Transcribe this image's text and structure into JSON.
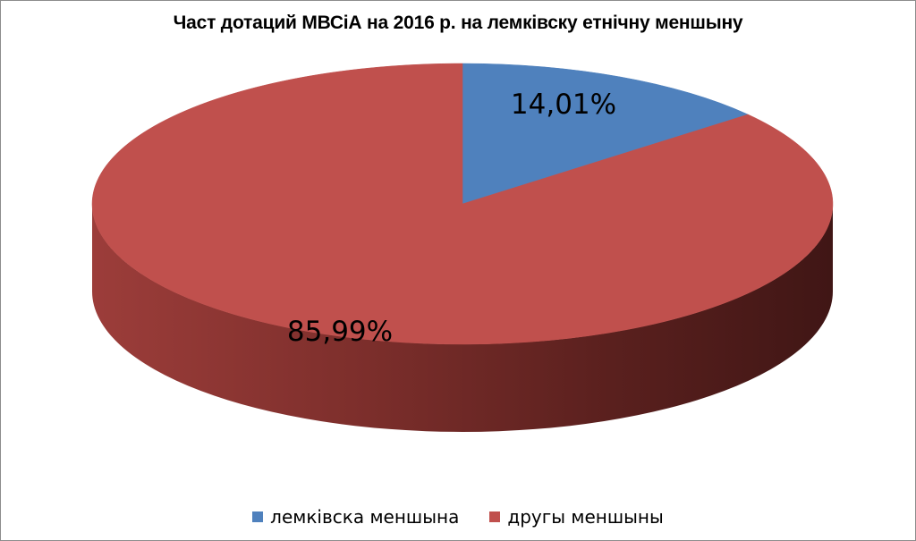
{
  "chart_data": {
    "type": "pie",
    "title": "Част дотаций МВСіА на 2016 р. на лемківску етнічну меншыну",
    "categories": [
      "лемківска меншына",
      "другы меншыны"
    ],
    "values": [
      14.01,
      85.99
    ],
    "data_labels": [
      "14,01%",
      "85,99%"
    ],
    "colors": [
      "#4f81bd",
      "#c0504d"
    ],
    "style": "3d",
    "legend_position": "bottom"
  }
}
